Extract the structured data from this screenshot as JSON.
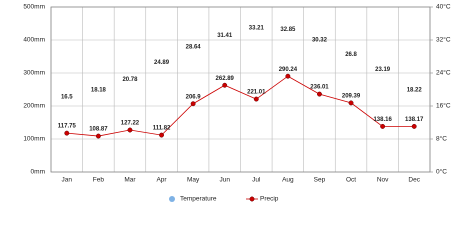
{
  "chart_data": {
    "type": "line",
    "categories": [
      "Jan",
      "Feb",
      "Mar",
      "Apr",
      "May",
      "Jun",
      "Jul",
      "Aug",
      "Sep",
      "Oct",
      "Nov",
      "Dec"
    ],
    "series": [
      {
        "name": "Temperature",
        "color": "#7fb2e5",
        "axis": "y2",
        "show_line": false,
        "values": [
          16.5,
          18.18,
          20.78,
          24.89,
          28.64,
          31.41,
          33.21,
          32.85,
          30.32,
          26.8,
          23.19,
          18.22
        ]
      },
      {
        "name": "Precip",
        "color": "#cc0000",
        "values": [
          117.75,
          108.87,
          127.22,
          111.82,
          206.9,
          262.89,
          221.01,
          290.24,
          236.01,
          209.39,
          138.16,
          138.17
        ]
      }
    ],
    "ylim": [
      0,
      500
    ],
    "yticks": [
      {
        "value": 0,
        "label": "0mm"
      },
      {
        "value": 100,
        "label": "100mm"
      },
      {
        "value": 200,
        "label": "200mm"
      },
      {
        "value": 300,
        "label": "300mm"
      },
      {
        "value": 400,
        "label": "400mm"
      },
      {
        "value": 500,
        "label": "500mm"
      }
    ],
    "y2lim": [
      0,
      40
    ],
    "y2ticks": [
      {
        "value": 0,
        "label": "0°C"
      },
      {
        "value": 8,
        "label": "8°C"
      },
      {
        "value": 16,
        "label": "16°C"
      },
      {
        "value": 24,
        "label": "24°C"
      },
      {
        "value": 32,
        "label": "32°C"
      },
      {
        "value": 40,
        "label": "40°C"
      }
    ],
    "grid": true,
    "legend": "bottom"
  }
}
